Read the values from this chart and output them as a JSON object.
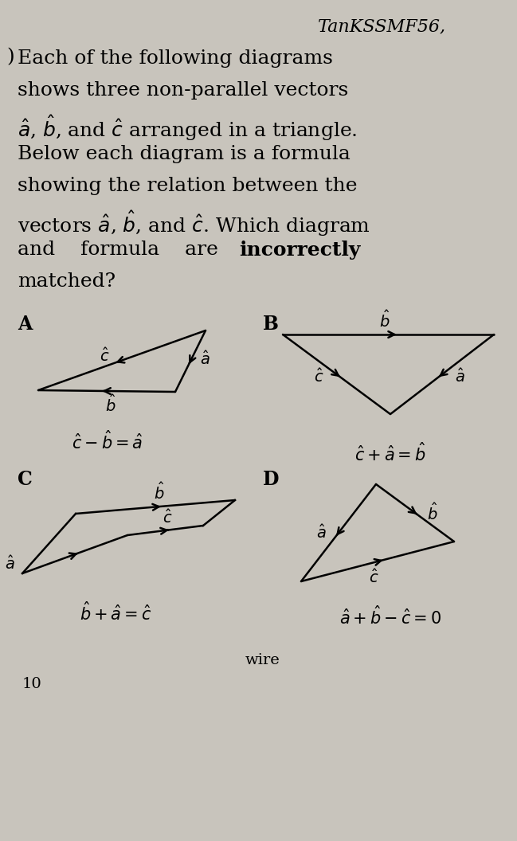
{
  "title": "TanKSSMF56,",
  "bg_color": "#c8c4bc",
  "formula_A": "$\\hat{c} - \\hat{b} = \\hat{a}$",
  "formula_B": "$\\hat{c} + \\hat{a} = \\hat{b}$",
  "formula_C": "$\\hat{b} + \\hat{a} = \\hat{c}$",
  "formula_D": "$\\hat{a} + \\hat{b} - \\hat{c} = 0$",
  "wire_text": "wire",
  "footer_num": "10",
  "line1": "Each of the following diagrams",
  "line2": "shows three non-parallel vectors",
  "line3a": "$\\hat{a}$, $\\hat{b}$, and $\\hat{c}$ arranged in a triangle.",
  "line4": "Below each diagram is a formula",
  "line5": "showing the relation between the",
  "line6": "vectors $\\hat{a}$, $\\hat{b}$, and $\\hat{c}$. Which diagram",
  "line7a": "and    formula    are",
  "line7b": "incorrectly",
  "line8": "matched?"
}
